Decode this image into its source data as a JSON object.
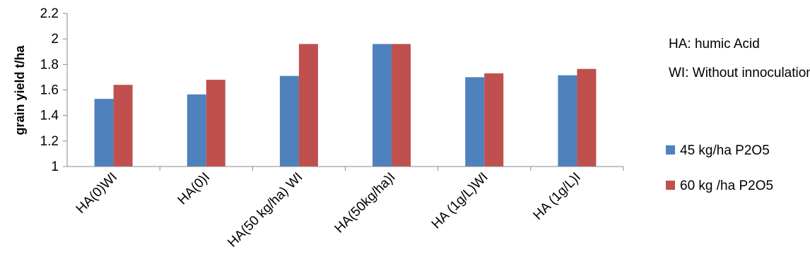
{
  "chart_data": {
    "type": "bar",
    "title": "",
    "xlabel": "",
    "ylabel": "grain yield t/ha",
    "ylim": [
      1,
      2.2
    ],
    "yticks": [
      "1",
      "1.2",
      "1.4",
      "1.6",
      "1.8",
      "2",
      "2.2"
    ],
    "grid": false,
    "legend_position": "right",
    "categories": [
      "HA(0)WI",
      "HA(0)I",
      "HA(50 kg/ha) WI",
      "HA(50kg/ha)I",
      "HA (1g/L)WI",
      "HA (1g/L)I"
    ],
    "series": [
      {
        "name": "45 kg/ha P2O5",
        "color": "#4F81BD",
        "values": [
          1.53,
          1.565,
          1.71,
          1.96,
          1.7,
          1.715
        ]
      },
      {
        "name": "60 kg /ha P2O5",
        "color": "#C0504D",
        "values": [
          1.64,
          1.68,
          1.96,
          1.96,
          1.73,
          1.765
        ]
      }
    ],
    "annotations": [
      "HA: humic Acid",
      "WI: Without innoculation"
    ]
  }
}
